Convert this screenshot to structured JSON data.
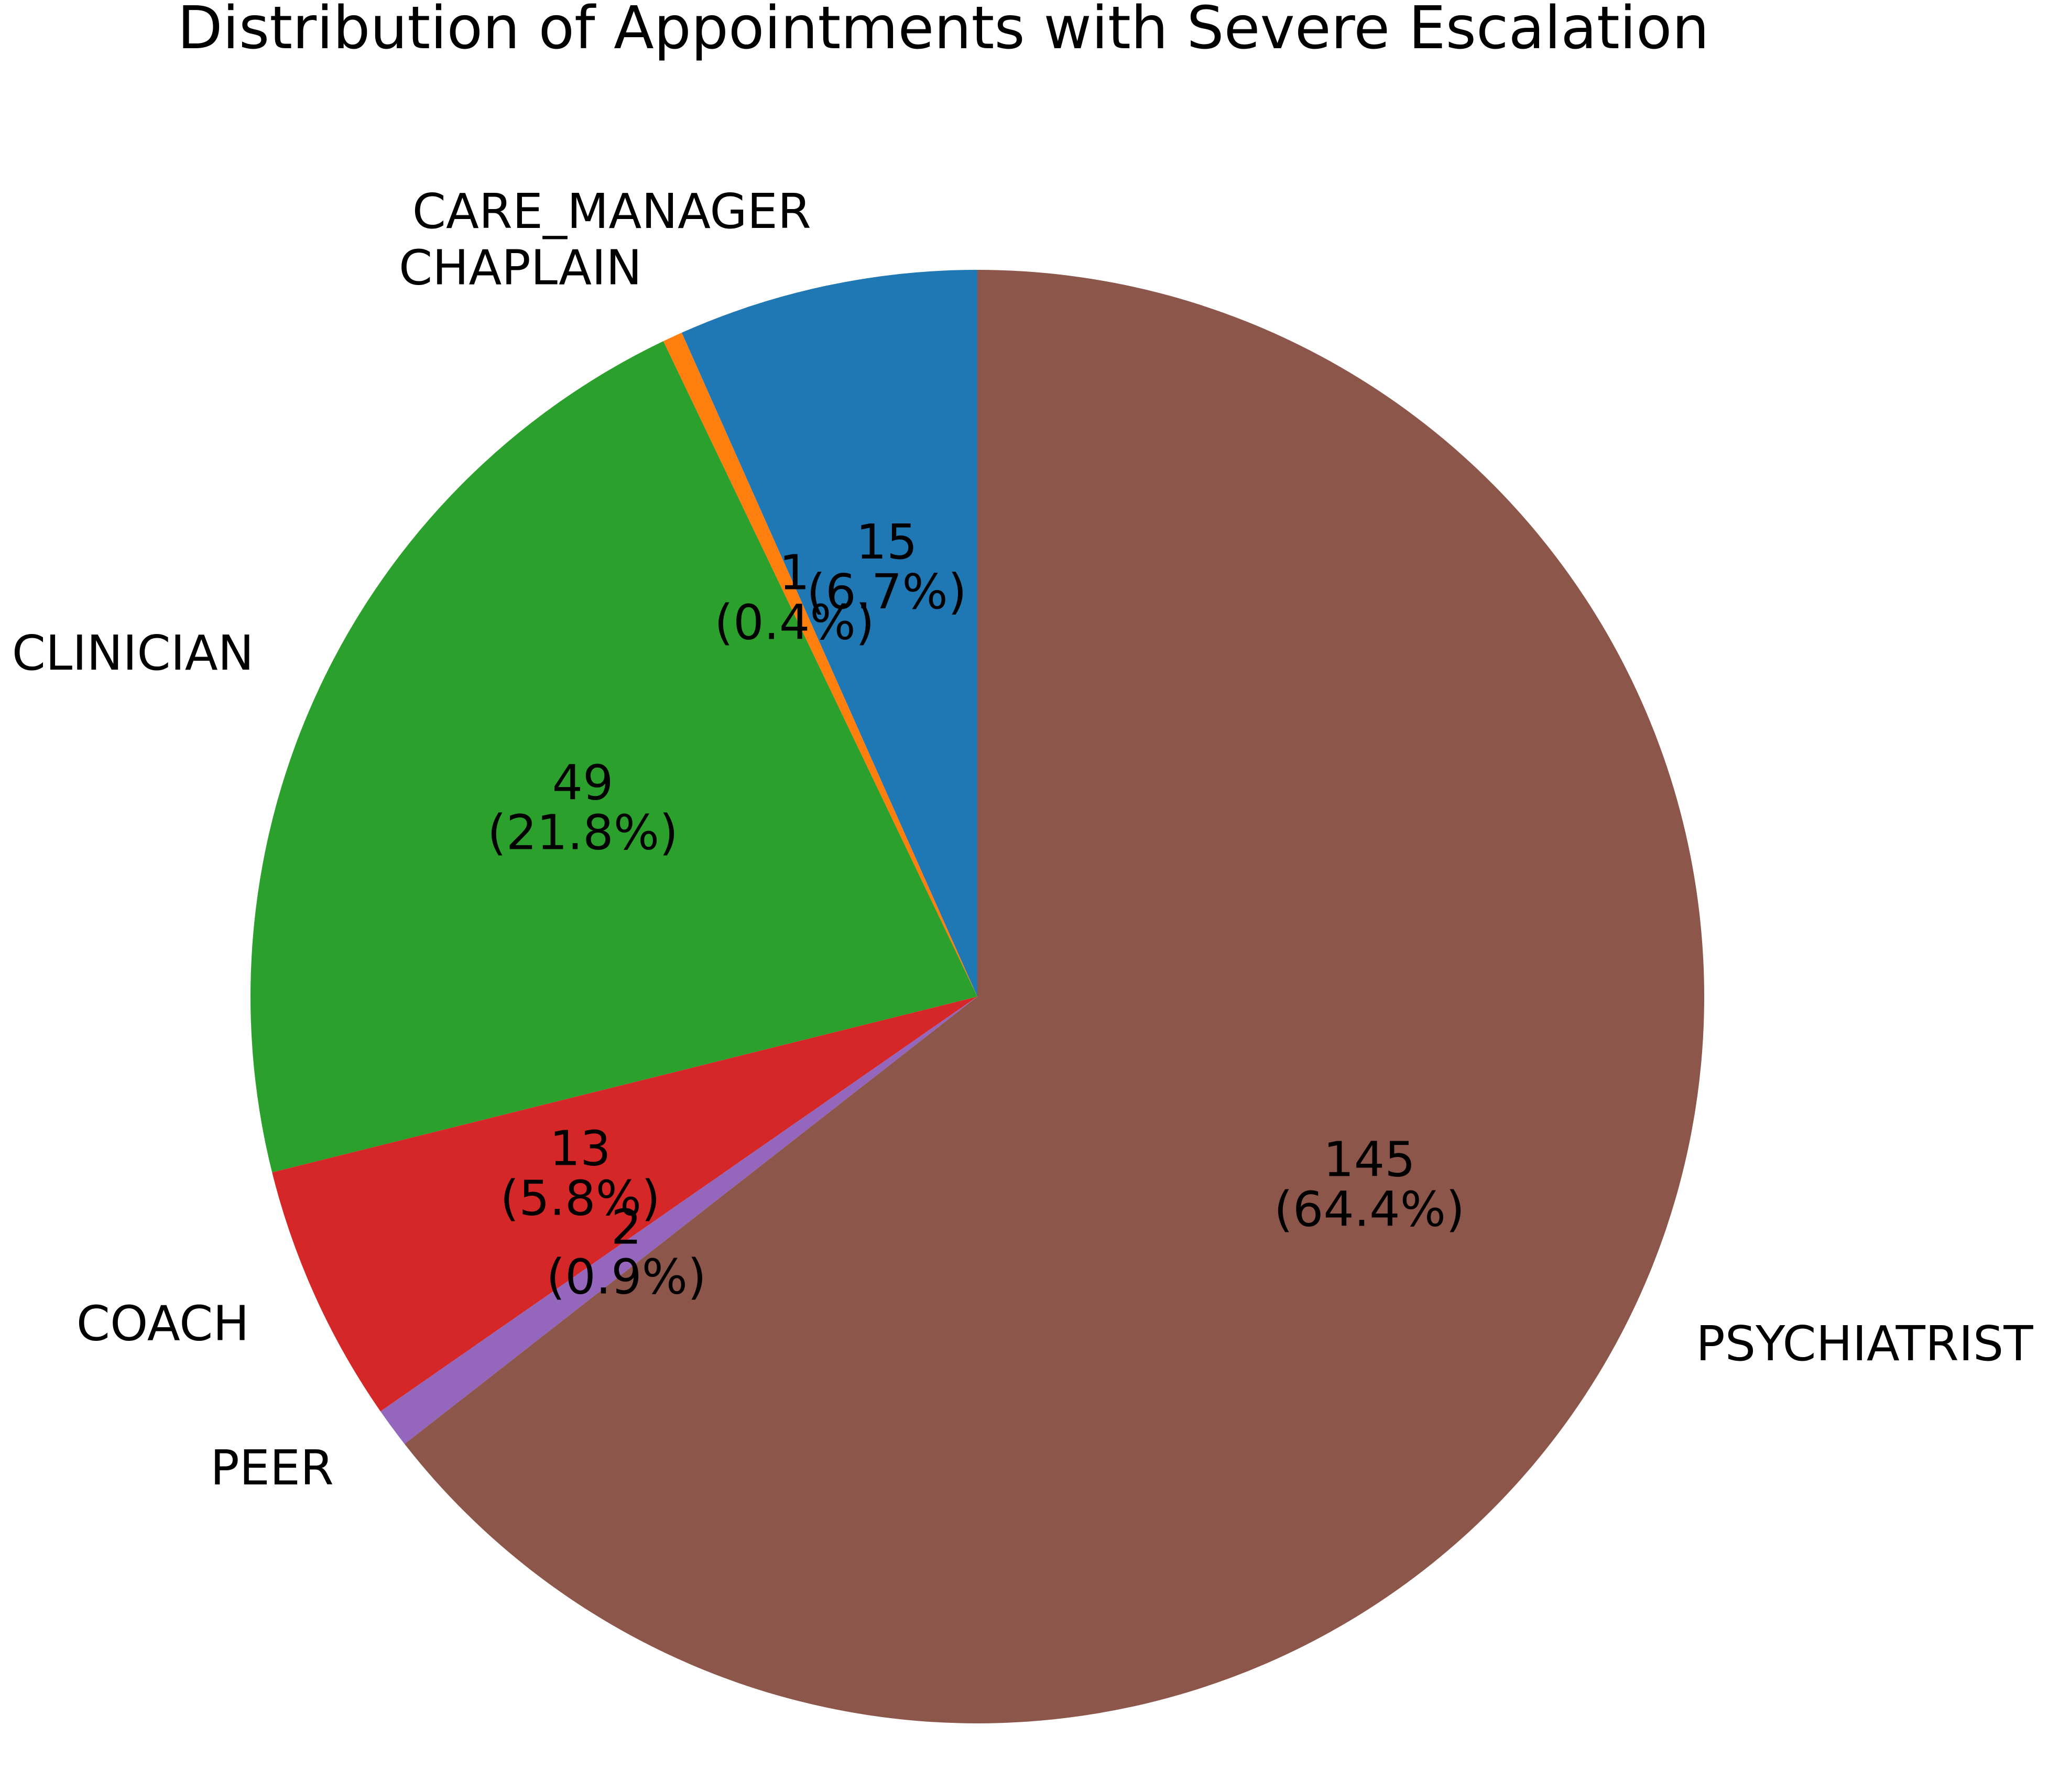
{
  "chart_data": {
    "type": "pie",
    "title": "Distribution of Appointments with Severe Escalation",
    "slices": [
      {
        "label": "CARE_MANAGER",
        "value": 15,
        "percent_label": "(6.7%)",
        "color": "#1f77b4"
      },
      {
        "label": "CHAPLAIN",
        "value": 1,
        "percent_label": "(0.4%)",
        "color": "#ff7f0e"
      },
      {
        "label": "CLINICIAN",
        "value": 49,
        "percent_label": "(21.8%)",
        "color": "#2ca02c"
      },
      {
        "label": "COACH",
        "value": 13,
        "percent_label": "(5.8%)",
        "color": "#d62728"
      },
      {
        "label": "PEER",
        "value": 2,
        "percent_label": "(0.9%)",
        "color": "#9467bd"
      },
      {
        "label": "PSYCHIATRIST",
        "value": 145,
        "percent_label": "(64.4%)",
        "color": "#8c564b"
      }
    ],
    "start_angle_deg": 90,
    "direction": "counterclockwise",
    "legend": "none"
  }
}
